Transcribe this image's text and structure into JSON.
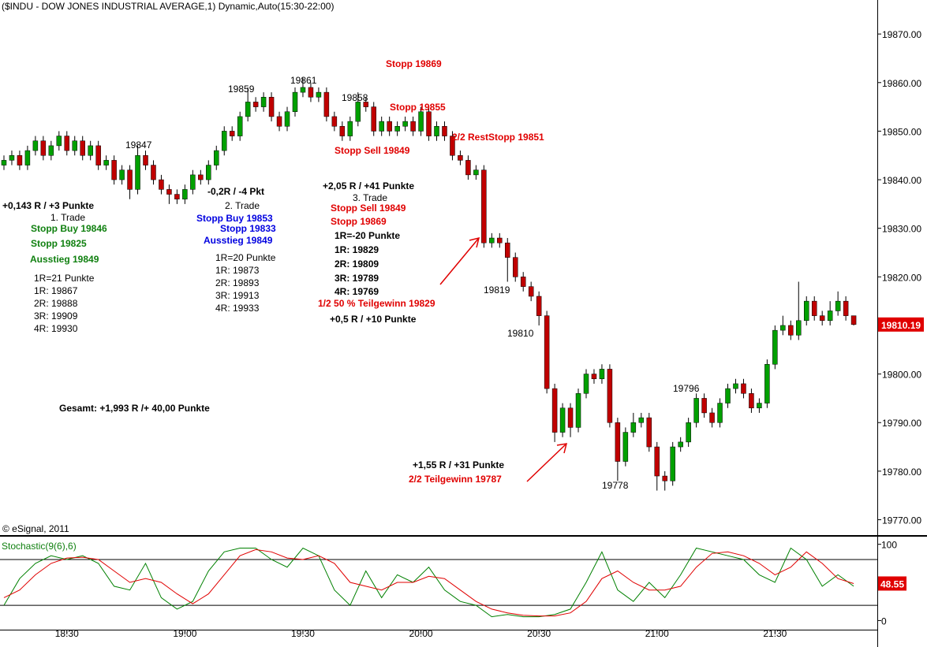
{
  "chart_data": [
    {
      "type": "candlestick",
      "title": "($INDU - DOW JONES INDUSTRIAL AVERAGE,1) Dynamic,Auto(15:30-22:00)",
      "source": "© eSignal, 2011",
      "x": [
        "18:14",
        "18:16",
        "18:18",
        "18:20",
        "18:22",
        "18:24",
        "18:26",
        "18:28",
        "18:30",
        "18:32",
        "18:34",
        "18:36",
        "18:38",
        "18:40",
        "18:42",
        "18:44",
        "18:46",
        "18:48",
        "18:50",
        "18:52",
        "18:54",
        "18:56",
        "18:58",
        "19:00",
        "19:02",
        "19:04",
        "19:06",
        "19:08",
        "19:10",
        "19:12",
        "19:14",
        "19:16",
        "19:18",
        "19:20",
        "19:22",
        "19:24",
        "19:26",
        "19:28",
        "19:30",
        "19:32",
        "19:34",
        "19:36",
        "19:38",
        "19:40",
        "19:42",
        "19:44",
        "19:46",
        "19:48",
        "19:50",
        "19:52",
        "19:54",
        "19:56",
        "19:58",
        "20:00",
        "20:02",
        "20:04",
        "20:06",
        "20:08",
        "20:10",
        "20:12",
        "20:14",
        "20:16",
        "20:18",
        "20:20",
        "20:22",
        "20:24",
        "20:26",
        "20:28",
        "20:30",
        "20:32",
        "20:34",
        "20:36",
        "20:38",
        "20:40",
        "20:42",
        "20:44",
        "20:46",
        "20:48",
        "20:50",
        "20:52",
        "20:54",
        "20:56",
        "20:58",
        "21:00",
        "21:02",
        "21:04",
        "21:06",
        "21:08",
        "21:10",
        "21:12",
        "21:14",
        "21:16",
        "21:18",
        "21:20",
        "21:22",
        "21:24",
        "21:26",
        "21:28",
        "21:30",
        "21:32",
        "21:34",
        "21:36",
        "21:38",
        "21:40",
        "21:42",
        "21:44",
        "21:46",
        "21:48",
        "21:50"
      ],
      "open": [
        19843,
        19844,
        19845,
        19843,
        19846,
        19848,
        19845,
        19847,
        19849,
        19846,
        19848,
        19845,
        19847,
        19843,
        19844,
        19840,
        19842,
        19838,
        19845,
        19843,
        19840,
        19838,
        19837,
        19836,
        19838,
        19841,
        19840,
        19843,
        19846,
        19850,
        19849,
        19853,
        19856,
        19855,
        19857,
        19853,
        19851,
        19854,
        19858,
        19859,
        19857,
        19858,
        19853,
        19851,
        19849,
        19852,
        19856,
        19855,
        19850,
        19852,
        19850,
        19851,
        19852,
        19850,
        19854,
        19849,
        19851,
        19849,
        19845,
        19844,
        19841,
        19842,
        19827,
        19828,
        19827,
        19824,
        19820,
        19818,
        19816,
        19812,
        19797,
        19788,
        19793,
        19789,
        19796,
        19800,
        19799,
        19801,
        19790,
        19782,
        19788,
        19790,
        19791,
        19785,
        19779,
        19778,
        19785,
        19786,
        19790,
        19795,
        19792,
        19790,
        19794,
        19797,
        19798,
        19796,
        19793,
        19794,
        19802,
        19809,
        19810,
        19808,
        19811,
        19815,
        19812,
        19811,
        19813,
        19815,
        19812
      ],
      "high": [
        19845,
        19846,
        19846,
        19847,
        19849,
        19849,
        19848,
        19850,
        19850,
        19849,
        19849,
        19848,
        19848,
        19845,
        19845,
        19843,
        19843,
        19847,
        19846,
        19844,
        19841,
        19839,
        19838,
        19839,
        19842,
        19842,
        19844,
        19847,
        19851,
        19851,
        19854,
        19859,
        19857,
        19858,
        19858,
        19854,
        19855,
        19859,
        19861,
        19860,
        19859,
        19859,
        19854,
        19852,
        19853,
        19858,
        19857,
        19856,
        19853,
        19853,
        19852,
        19853,
        19853,
        19855,
        19855,
        19852,
        19852,
        19850,
        19846,
        19845,
        19843,
        19843,
        19829,
        19829,
        19828,
        19825,
        19821,
        19819,
        19817,
        19813,
        19798,
        19794,
        19794,
        19797,
        19801,
        19801,
        19802,
        19802,
        19791,
        19789,
        19792,
        19792,
        19792,
        19786,
        19780,
        19786,
        19787,
        19791,
        19796,
        19796,
        19793,
        19795,
        19798,
        19799,
        19799,
        19797,
        19795,
        19803,
        19810,
        19812,
        19811,
        19819,
        19816,
        19816,
        19813,
        19815,
        19817,
        19816,
        19812
      ],
      "low": [
        19842,
        19843,
        19842,
        19842,
        19845,
        19844,
        19844,
        19846,
        19845,
        19845,
        19844,
        19844,
        19842,
        19842,
        19839,
        19839,
        19836,
        19837,
        19842,
        19839,
        19837,
        19835,
        19835,
        19835,
        19837,
        19839,
        19839,
        19842,
        19845,
        19848,
        19848,
        19852,
        19854,
        19854,
        19852,
        19850,
        19850,
        19853,
        19857,
        19856,
        19856,
        19852,
        19850,
        19848,
        19848,
        19851,
        19854,
        19849,
        19849,
        19849,
        19849,
        19850,
        19849,
        19849,
        19848,
        19848,
        19848,
        19844,
        19843,
        19840,
        19840,
        19826,
        19826,
        19826,
        19819,
        19819,
        19817,
        19815,
        19810,
        19796,
        19786,
        19787,
        19787,
        19788,
        19795,
        19798,
        19798,
        19789,
        19778,
        19781,
        19787,
        19789,
        19784,
        19776,
        19776,
        19777,
        19784,
        19785,
        19789,
        19791,
        19789,
        19789,
        19793,
        19796,
        19795,
        19792,
        19792,
        19793,
        19801,
        19808,
        19807,
        19807,
        19810,
        19811,
        19810,
        19810,
        19812,
        19811,
        19810
      ],
      "close": [
        19844,
        19845,
        19843,
        19846,
        19848,
        19845,
        19847,
        19849,
        19846,
        19848,
        19845,
        19847,
        19843,
        19844,
        19840,
        19842,
        19838,
        19845,
        19843,
        19840,
        19838,
        19837,
        19836,
        19838,
        19841,
        19840,
        19843,
        19846,
        19850,
        19849,
        19853,
        19856,
        19855,
        19857,
        19853,
        19851,
        19854,
        19858,
        19859,
        19857,
        19858,
        19853,
        19851,
        19849,
        19852,
        19856,
        19855,
        19850,
        19852,
        19850,
        19851,
        19852,
        19850,
        19854,
        19849,
        19851,
        19849,
        19845,
        19844,
        19841,
        19842,
        19827,
        19828,
        19827,
        19824,
        19820,
        19818,
        19816,
        19812,
        19797,
        19788,
        19793,
        19789,
        19796,
        19800,
        19799,
        19801,
        19790,
        19782,
        19788,
        19790,
        19791,
        19785,
        19779,
        19778,
        19785,
        19786,
        19790,
        19795,
        19792,
        19790,
        19794,
        19797,
        19798,
        19796,
        19793,
        19794,
        19802,
        19809,
        19810,
        19808,
        19811,
        19815,
        19812,
        19811,
        19813,
        19815,
        19812,
        19810.19
      ],
      "up_color": "#00a000",
      "down_color": "#c00000",
      "wick_color": "#000000",
      "last_color": "#e00000",
      "xlim": [
        "18:13",
        "21:56"
      ],
      "ylim": [
        19767,
        19877
      ],
      "yticks": [
        {
          "value": 19770,
          "label": "19770.00"
        },
        {
          "value": 19780,
          "label": "19780.00"
        },
        {
          "value": 19790,
          "label": "19790.00"
        },
        {
          "value": 19800,
          "label": "19800.00"
        },
        {
          "value": 19810,
          "label": "19810.00"
        },
        {
          "value": 19820,
          "label": "19820.00"
        },
        {
          "value": 19830,
          "label": "19830.00"
        },
        {
          "value": 19840,
          "label": "19840.00"
        },
        {
          "value": 19850,
          "label": "19850.00"
        },
        {
          "value": 19860,
          "label": "19860.00"
        },
        {
          "value": 19870,
          "label": "19870.00"
        }
      ],
      "annotations": [
        {
          "text": "Stopp 19869",
          "color": "#e00000"
        },
        {
          "text": "19859",
          "color": "#000000"
        },
        {
          "text": "19861",
          "color": "#000000"
        },
        {
          "text": "19858",
          "color": "#000000"
        },
        {
          "text": "Stopp 19855",
          "color": "#e00000"
        },
        {
          "text": "2/2 RestStopp 19851",
          "color": "#e00000"
        },
        {
          "text": "19847",
          "color": "#000000"
        },
        {
          "text": "Stopp Sell 19849",
          "color": "#e00000"
        },
        {
          "text": "+2,05 R / +41 Punkte",
          "color": "#000000"
        },
        {
          "text": "3. Trade",
          "color": "#000000"
        },
        {
          "text": "-0,2R / -4 Pkt",
          "color": "#000000"
        },
        {
          "text": "2. Trade",
          "color": "#000000"
        },
        {
          "text": "+0,143 R / +3 Punkte",
          "color": "#000000"
        },
        {
          "text": "1. Trade",
          "color": "#000000"
        },
        {
          "text": "Stopp Sell 19849",
          "color": "#e00000"
        },
        {
          "text": "Stopp 19869",
          "color": "#e00000"
        },
        {
          "text": "Stopp Buy 19853",
          "color": "#0000e0"
        },
        {
          "text": "Stopp 19833",
          "color": "#0000e0"
        },
        {
          "text": "Ausstieg 19849",
          "color": "#0000e0"
        },
        {
          "text": "Stopp Buy 19846",
          "color": "#108010"
        },
        {
          "text": "1R=-20 Punkte",
          "color": "#000000"
        },
        {
          "text": "Stopp 19825",
          "color": "#108010"
        },
        {
          "text": "1R: 19829",
          "color": "#000000"
        },
        {
          "text": "Ausstieg 19849",
          "color": "#108010"
        },
        {
          "text": "1R=20 Punkte",
          "color": "#000000"
        },
        {
          "text": "2R: 19809",
          "color": "#000000"
        },
        {
          "text": "1R: 19873",
          "color": "#000000"
        },
        {
          "text": "1R=21 Punkte",
          "color": "#000000"
        },
        {
          "text": "3R: 19789",
          "color": "#000000"
        },
        {
          "text": "2R: 19893",
          "color": "#000000"
        },
        {
          "text": "1R: 19867",
          "color": "#000000"
        },
        {
          "text": "4R: 19769",
          "color": "#000000"
        },
        {
          "text": "19819",
          "color": "#000000"
        },
        {
          "text": "3R: 19913",
          "color": "#000000"
        },
        {
          "text": "2R: 19888",
          "color": "#000000"
        },
        {
          "text": "1/2 50 % Teilgewinn 19829",
          "color": "#e00000"
        },
        {
          "text": "4R: 19933",
          "color": "#000000"
        },
        {
          "text": "3R: 19909",
          "color": "#000000"
        },
        {
          "text": "+0,5 R / +10 Punkte",
          "color": "#000000"
        },
        {
          "text": "4R: 19930",
          "color": "#000000"
        },
        {
          "text": "19810",
          "color": "#000000"
        },
        {
          "text": "19796",
          "color": "#000000"
        },
        {
          "text": "Gesamt: +1,993 R /+ 40,00 Punkte",
          "color": "#000000"
        },
        {
          "text": "+1,55 R / +31 Punkte",
          "color": "#000000"
        },
        {
          "text": "2/2 Teilgewinn 19787",
          "color": "#e00000"
        },
        {
          "text": "19778",
          "color": "#000000"
        }
      ]
    },
    {
      "type": "line",
      "title": "Stochastic(9(6),6)",
      "title_color": "#108010",
      "x": [
        "18:14",
        "18:18",
        "18:22",
        "18:26",
        "18:30",
        "18:34",
        "18:38",
        "18:42",
        "18:46",
        "18:50",
        "18:54",
        "18:58",
        "19:02",
        "19:06",
        "19:10",
        "19:14",
        "19:18",
        "19:22",
        "19:26",
        "19:30",
        "19:34",
        "19:38",
        "19:42",
        "19:46",
        "19:50",
        "19:54",
        "19:58",
        "20:02",
        "20:06",
        "20:10",
        "20:14",
        "20:18",
        "20:22",
        "20:26",
        "20:30",
        "20:34",
        "20:38",
        "20:42",
        "20:46",
        "20:50",
        "20:54",
        "20:58",
        "21:02",
        "21:06",
        "21:10",
        "21:14",
        "21:18",
        "21:22",
        "21:26",
        "21:30",
        "21:34",
        "21:38",
        "21:42",
        "21:46",
        "21:50"
      ],
      "series": [
        {
          "color": "#008000",
          "values": [
            20,
            55,
            75,
            85,
            80,
            85,
            75,
            45,
            40,
            75,
            30,
            15,
            25,
            65,
            90,
            95,
            95,
            80,
            70,
            95,
            85,
            40,
            20,
            65,
            30,
            60,
            50,
            70,
            40,
            25,
            20,
            5,
            8,
            5,
            5,
            8,
            15,
            50,
            90,
            40,
            25,
            50,
            30,
            60,
            95,
            90,
            85,
            80,
            60,
            50,
            95,
            80,
            45,
            60,
            45
          ]
        },
        {
          "color": "#e00000",
          "values": [
            30,
            40,
            60,
            75,
            82,
            83,
            80,
            65,
            50,
            55,
            50,
            35,
            22,
            35,
            60,
            85,
            93,
            90,
            82,
            80,
            85,
            75,
            50,
            45,
            40,
            50,
            50,
            58,
            55,
            40,
            25,
            15,
            10,
            7,
            6,
            6,
            10,
            25,
            55,
            65,
            50,
            40,
            40,
            45,
            70,
            88,
            90,
            85,
            75,
            60,
            70,
            90,
            75,
            55,
            48.55
          ]
        }
      ],
      "levels": [
        80,
        20
      ],
      "xlim": [
        "18:13",
        "21:56"
      ],
      "xticks": [
        "18:30",
        "19:00",
        "19:30",
        "20:00",
        "20:30",
        "21:00",
        "21:30"
      ],
      "ylim": [
        -13,
        110
      ],
      "yticks": [
        100,
        0
      ]
    }
  ]
}
